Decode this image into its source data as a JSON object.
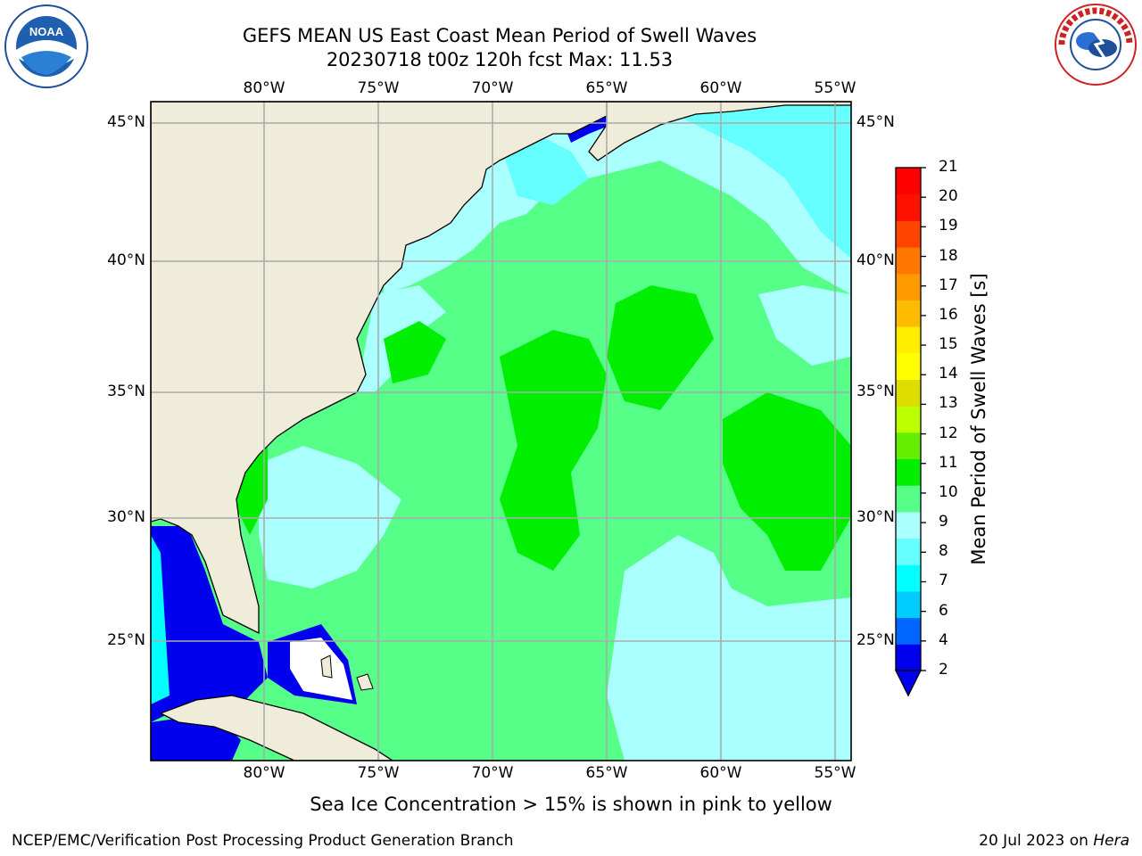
{
  "title_line1": "GEFS MEAN US East Coast Mean Period of Swell Waves",
  "title_line2": "20230718 t00z 120h fcst   Max: 11.53",
  "lon_labels": [
    "80°W",
    "75°W",
    "70°W",
    "65°W",
    "60°W",
    "55°W"
  ],
  "lat_labels": [
    "45°N",
    "40°N",
    "35°N",
    "30°N",
    "25°N"
  ],
  "colorbar": {
    "title": "Mean Period of Swell Waves [s]",
    "tick_labels": [
      "2",
      "4",
      "6",
      "7",
      "8",
      "9",
      "10",
      "11",
      "12",
      "13",
      "14",
      "15",
      "16",
      "17",
      "18",
      "19",
      "20",
      "21"
    ],
    "colors": [
      "#0000ee",
      "#0066ff",
      "#00ccff",
      "#00ffff",
      "#66ffff",
      "#aaffff",
      "#55ff88",
      "#00ee00",
      "#66ee00",
      "#bbff00",
      "#dddd00",
      "#ffff00",
      "#ffee00",
      "#ffbb00",
      "#ff9900",
      "#ff7700",
      "#ff4400",
      "#ff1100",
      "#ff0000"
    ]
  },
  "map_colors": {
    "land": "#efedda",
    "deep_blue": "#0000ee",
    "cyan": "#00ffff",
    "light_cyan": "#aaffff",
    "light_green": "#55ff88",
    "green": "#00ee00",
    "grid": "#aaaaaa"
  },
  "note": "Sea Ice Concentration > 15% is shown in pink to yellow",
  "footer_left": "NCEP/EMC/Verification Post Processing Product Generation Branch",
  "footer_date": "20 Jul 2023 on ",
  "footer_machine": "Hera",
  "logos": {
    "noaa": {
      "text": "NOAA"
    },
    "nws": {
      "text": "NATIONAL WEATHER SERVICE"
    }
  }
}
